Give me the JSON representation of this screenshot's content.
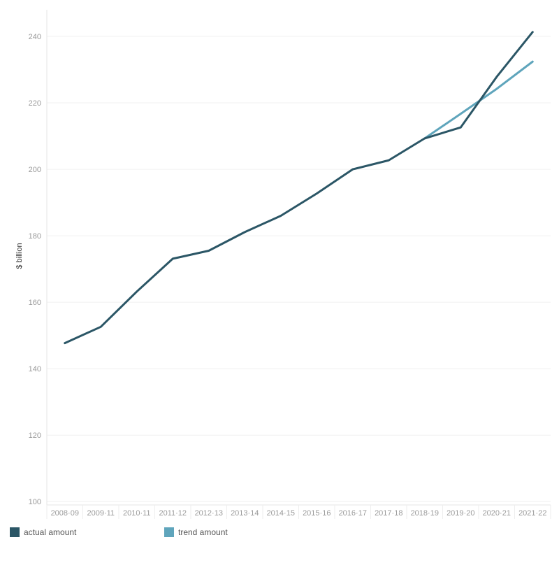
{
  "chart_data": {
    "type": "line",
    "x": [
      "2008-09",
      "2009-11",
      "2010-11",
      "2011-12",
      "2012-13",
      "2013-14",
      "2014-15",
      "2015-16",
      "2016-17",
      "2017-18",
      "2018-19",
      "2019-20",
      "2020-21",
      "2021-22"
    ],
    "x_tick_labels": [
      "2008·09",
      "2009·11",
      "2010·11",
      "2011·12",
      "2012·13",
      "2013·14",
      "2014·15",
      "2015·16",
      "2016·17",
      "2017·18",
      "2018·19",
      "2019·20",
      "2020·21",
      "2021·22"
    ],
    "y_ticks": [
      100,
      120,
      140,
      160,
      180,
      200,
      220,
      240
    ],
    "ylim": [
      99,
      248
    ],
    "ylabel": "$ billion",
    "xlabel": "",
    "grid": true,
    "legend_position": "bottom-left",
    "series": [
      {
        "name": "actual amount",
        "color": "#2b5666",
        "values": [
          147.7,
          152.6,
          163.2,
          173.1,
          175.5,
          181.1,
          186.0,
          192.7,
          200.0,
          202.7,
          209.3,
          212.6,
          227.8,
          241.3
        ]
      },
      {
        "name": "trend amount",
        "color": "#5fa5bc",
        "values": [
          null,
          null,
          null,
          null,
          null,
          null,
          null,
          null,
          null,
          null,
          209.3,
          216.7,
          224.2,
          232.4
        ]
      }
    ]
  }
}
